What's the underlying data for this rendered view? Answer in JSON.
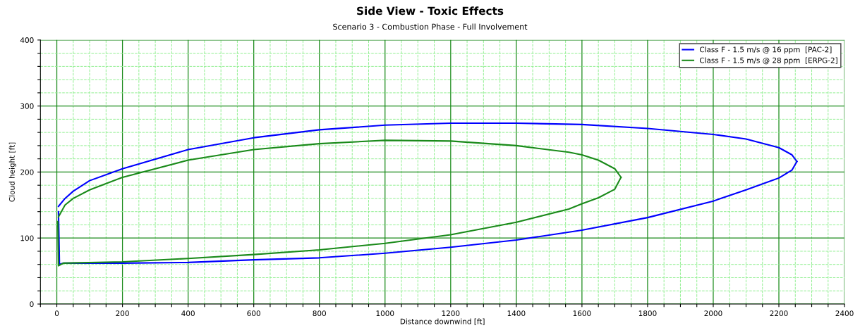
{
  "chart_data": {
    "type": "line",
    "title": "Side View - Toxic Effects",
    "subtitle": "Scenario 3 - Combustion Phase - Full Involvement",
    "xlabel": "Distance downwind [ft]",
    "ylabel": "Cloud height [ft]",
    "xlim": [
      -50,
      2400
    ],
    "ylim": [
      0,
      400
    ],
    "xticks": [
      {
        "value": -50,
        "label": null
      },
      0,
      {
        "value": 50,
        "label": null
      },
      {
        "value": 100,
        "label": null
      },
      {
        "value": 150,
        "label": null
      },
      200,
      {
        "value": 250,
        "label": null
      },
      {
        "value": 300,
        "label": null
      },
      {
        "value": 350,
        "label": null
      },
      400,
      {
        "value": 450,
        "label": null
      },
      {
        "value": 500,
        "label": null
      },
      {
        "value": 550,
        "label": null
      },
      600,
      {
        "value": 650,
        "label": null
      },
      {
        "value": 700,
        "label": null
      },
      {
        "value": 750,
        "label": null
      },
      800,
      {
        "value": 850,
        "label": null
      },
      {
        "value": 900,
        "label": null
      },
      {
        "value": 950,
        "label": null
      },
      1000,
      {
        "value": 1050,
        "label": null
      },
      {
        "value": 1100,
        "label": null
      },
      {
        "value": 1150,
        "label": null
      },
      1200,
      {
        "value": 1250,
        "label": null
      },
      {
        "value": 1300,
        "label": null
      },
      {
        "value": 1350,
        "label": null
      },
      1400,
      {
        "value": 1450,
        "label": null
      },
      {
        "value": 1500,
        "label": null
      },
      {
        "value": 1550,
        "label": null
      },
      1600,
      {
        "value": 1650,
        "label": null
      },
      {
        "value": 1700,
        "label": null
      },
      {
        "value": 1750,
        "label": null
      },
      1800,
      {
        "value": 1850,
        "label": null
      },
      {
        "value": 1900,
        "label": null
      },
      {
        "value": 1950,
        "label": null
      },
      2000,
      {
        "value": 2050,
        "label": null
      },
      {
        "value": 2100,
        "label": null
      },
      {
        "value": 2150,
        "label": null
      },
      2200,
      {
        "value": 2250,
        "label": null
      },
      {
        "value": 2300,
        "label": null
      },
      {
        "value": 2350,
        "label": null
      },
      2400
    ],
    "yticks": [
      0,
      {
        "value": 20,
        "label": null
      },
      {
        "value": 40,
        "label": null
      },
      {
        "value": 60,
        "label": null
      },
      {
        "value": 80,
        "label": null
      },
      100,
      {
        "value": 120,
        "label": null
      },
      {
        "value": 140,
        "label": null
      },
      {
        "value": 160,
        "label": null
      },
      {
        "value": 180,
        "label": null
      },
      200,
      {
        "value": 220,
        "label": null
      },
      {
        "value": 240,
        "label": null
      },
      {
        "value": 260,
        "label": null
      },
      {
        "value": 280,
        "label": null
      },
      300,
      {
        "value": 320,
        "label": null
      },
      {
        "value": 340,
        "label": null
      },
      {
        "value": 360,
        "label": null
      },
      {
        "value": 380,
        "label": null
      },
      400
    ],
    "grid": true,
    "legend": "top right",
    "line_style": "solid",
    "marker": "none",
    "series": [
      {
        "name": "Class F - 1.5 m/s @ 16 ppm  [PAC-2]",
        "color": "#0000ff",
        "x": [
          5,
          25,
          50,
          100,
          200,
          400,
          600,
          800,
          1000,
          1200,
          1400,
          1600,
          1800,
          2000,
          2100,
          2200,
          2240,
          2255
        ],
        "values": [
          148,
          160,
          171,
          187,
          205,
          234,
          252,
          264,
          271,
          274,
          274,
          272,
          266,
          257,
          250,
          237,
          226,
          216
        ]
      },
      {
        "color": "#0000ff",
        "x": [
          5,
          8,
          20,
          200,
          400,
          600,
          800,
          1000,
          1200,
          1400,
          1600,
          1800,
          2000,
          2100,
          2200,
          2240,
          2255
        ],
        "values": [
          140,
          60,
          62,
          62,
          63,
          67,
          70,
          77,
          86,
          97,
          112,
          131,
          156,
          173,
          191,
          203,
          216
        ]
      },
      {
        "name": "Class F - 1.5 m/s @ 28 ppm  [ERPG-2]",
        "color": "#1a8a1a",
        "x": [
          5,
          25,
          50,
          100,
          200,
          400,
          600,
          800,
          1000,
          1200,
          1400,
          1560,
          1600,
          1650,
          1700,
          1719
        ],
        "values": [
          132,
          150,
          160,
          173,
          192,
          218,
          234,
          243,
          248,
          247,
          240,
          230,
          226,
          218,
          205,
          192
        ]
      },
      {
        "color": "#1a8a1a",
        "x": [
          3,
          5,
          20,
          200,
          400,
          600,
          800,
          1000,
          1200,
          1400,
          1560,
          1600,
          1650,
          1700,
          1719
        ],
        "values": [
          125,
          58,
          62,
          64,
          69,
          75,
          82,
          92,
          105,
          124,
          144,
          152,
          161,
          174,
          192
        ]
      }
    ]
  }
}
